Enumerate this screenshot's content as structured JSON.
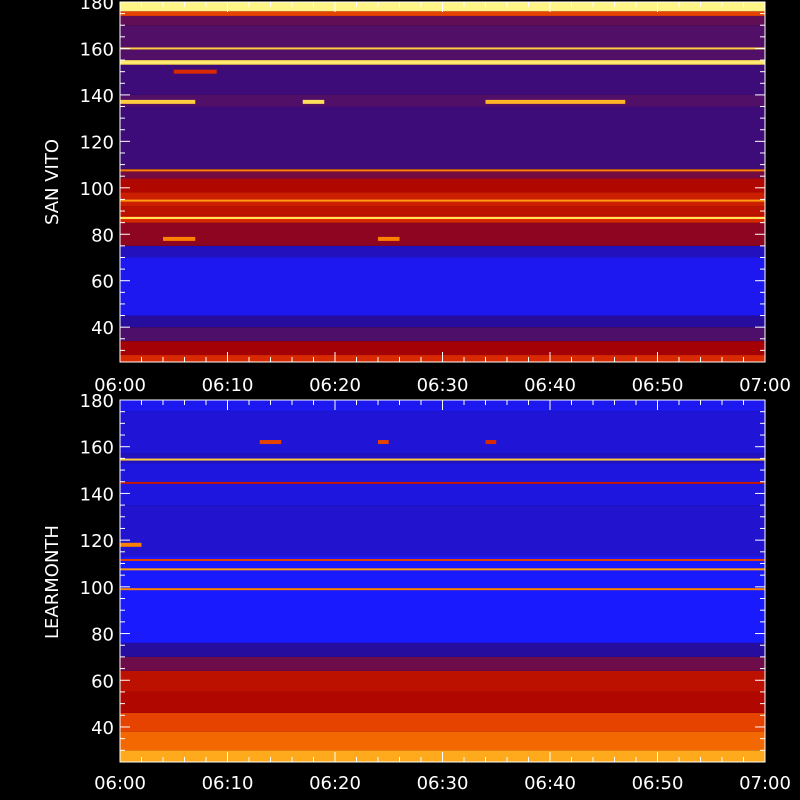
{
  "chart_data": [
    {
      "type": "heatmap",
      "ylabel": "SAN VITO",
      "x_ticks": [
        "06:00",
        "06:10",
        "06:20",
        "06:30",
        "06:40",
        "06:50",
        "07:00"
      ],
      "y_ticks": [
        40,
        60,
        80,
        100,
        120,
        140,
        160,
        180
      ],
      "xlim": [
        "06:00",
        "07:00"
      ],
      "ylim": [
        25,
        180
      ],
      "y_unit_step": 5,
      "colorscale": [
        "#1a1aff",
        "#2a0a8a",
        "#5a1060",
        "#a80000",
        "#e03000",
        "#ff8a00",
        "#ffd040",
        "#ffff99"
      ],
      "bands": [
        {
          "from": 25,
          "to": 28,
          "level": 0.55
        },
        {
          "from": 28,
          "to": 34,
          "level": 0.42
        },
        {
          "from": 34,
          "to": 40,
          "level": 0.25
        },
        {
          "from": 40,
          "to": 45,
          "level": 0.12
        },
        {
          "from": 45,
          "to": 70,
          "level": 0.02
        },
        {
          "from": 70,
          "to": 75,
          "level": 0.08
        },
        {
          "from": 75,
          "to": 85,
          "level": 0.38
        },
        {
          "from": 85,
          "to": 88,
          "level": 0.55
        },
        {
          "from": 88,
          "to": 92,
          "level": 0.48
        },
        {
          "from": 92,
          "to": 98,
          "level": 0.52
        },
        {
          "from": 98,
          "to": 104,
          "level": 0.45
        },
        {
          "from": 104,
          "to": 108,
          "level": 0.33
        },
        {
          "from": 108,
          "to": 135,
          "level": 0.2
        },
        {
          "from": 135,
          "to": 140,
          "level": 0.26
        },
        {
          "from": 140,
          "to": 153,
          "level": 0.2
        },
        {
          "from": 153,
          "to": 155,
          "level": 0.9
        },
        {
          "from": 155,
          "to": 170,
          "level": 0.26
        },
        {
          "from": 170,
          "to": 174,
          "level": 0.3
        },
        {
          "from": 174,
          "to": 176,
          "level": 0.6
        },
        {
          "from": 176,
          "to": 180,
          "level": 0.97
        }
      ],
      "lines": [
        {
          "freq": 87,
          "level": 0.9
        },
        {
          "freq": 94.5,
          "level": 0.75
        },
        {
          "freq": 107.5,
          "level": 0.7
        },
        {
          "freq": 160,
          "level": 0.85
        },
        {
          "freq": 154,
          "level": 0.95
        }
      ],
      "bursts": [
        {
          "freq": 137,
          "from": "06:00",
          "to": "06:07",
          "level": 0.85
        },
        {
          "freq": 137,
          "from": "06:34",
          "to": "06:47",
          "level": 0.8
        },
        {
          "freq": 137,
          "from": "06:17",
          "to": "06:19",
          "level": 0.9
        },
        {
          "freq": 150,
          "from": "06:05",
          "to": "06:09",
          "level": 0.55
        },
        {
          "freq": 78,
          "from": "06:04",
          "to": "06:07",
          "level": 0.7
        },
        {
          "freq": 78,
          "from": "06:24",
          "to": "06:26",
          "level": 0.7
        }
      ]
    },
    {
      "type": "heatmap",
      "ylabel": "LEARMONTH",
      "x_ticks": [
        "06:00",
        "06:10",
        "06:20",
        "06:30",
        "06:40",
        "06:50",
        "07:00"
      ],
      "y_ticks": [
        40,
        60,
        80,
        100,
        120,
        140,
        160,
        180
      ],
      "xlim": [
        "06:00",
        "07:00"
      ],
      "ylim": [
        25,
        180
      ],
      "y_unit_step": 5,
      "colorscale": [
        "#1a1aff",
        "#2a0a8a",
        "#5a1060",
        "#a80000",
        "#e03000",
        "#ff8a00",
        "#ffd040",
        "#ffff99"
      ],
      "bands": [
        {
          "from": 25,
          "to": 30,
          "level": 0.78
        },
        {
          "from": 30,
          "to": 38,
          "level": 0.66
        },
        {
          "from": 38,
          "to": 46,
          "level": 0.6
        },
        {
          "from": 46,
          "to": 55,
          "level": 0.45
        },
        {
          "from": 55,
          "to": 64,
          "level": 0.48
        },
        {
          "from": 64,
          "to": 70,
          "level": 0.32
        },
        {
          "from": 70,
          "to": 76,
          "level": 0.12
        },
        {
          "from": 76,
          "to": 113,
          "level": 0.0
        },
        {
          "from": 113,
          "to": 135,
          "level": 0.06
        },
        {
          "from": 135,
          "to": 153,
          "level": 0.04
        },
        {
          "from": 153,
          "to": 157,
          "level": 0.08
        },
        {
          "from": 157,
          "to": 175,
          "level": 0.05
        },
        {
          "from": 175,
          "to": 180,
          "level": 0.02
        }
      ],
      "lines": [
        {
          "freq": 99,
          "level": 0.7
        },
        {
          "freq": 107.5,
          "level": 0.75
        },
        {
          "freq": 111.5,
          "level": 0.6
        },
        {
          "freq": 154.5,
          "level": 0.85
        },
        {
          "freq": 144.5,
          "level": 0.5
        }
      ],
      "bursts": [
        {
          "freq": 162,
          "from": "06:13",
          "to": "06:15",
          "level": 0.6
        },
        {
          "freq": 162,
          "from": "06:24",
          "to": "06:25",
          "level": 0.6
        },
        {
          "freq": 162,
          "from": "06:34",
          "to": "06:35",
          "level": 0.55
        },
        {
          "freq": 118,
          "from": "06:00",
          "to": "06:02",
          "level": 0.7
        }
      ]
    }
  ]
}
